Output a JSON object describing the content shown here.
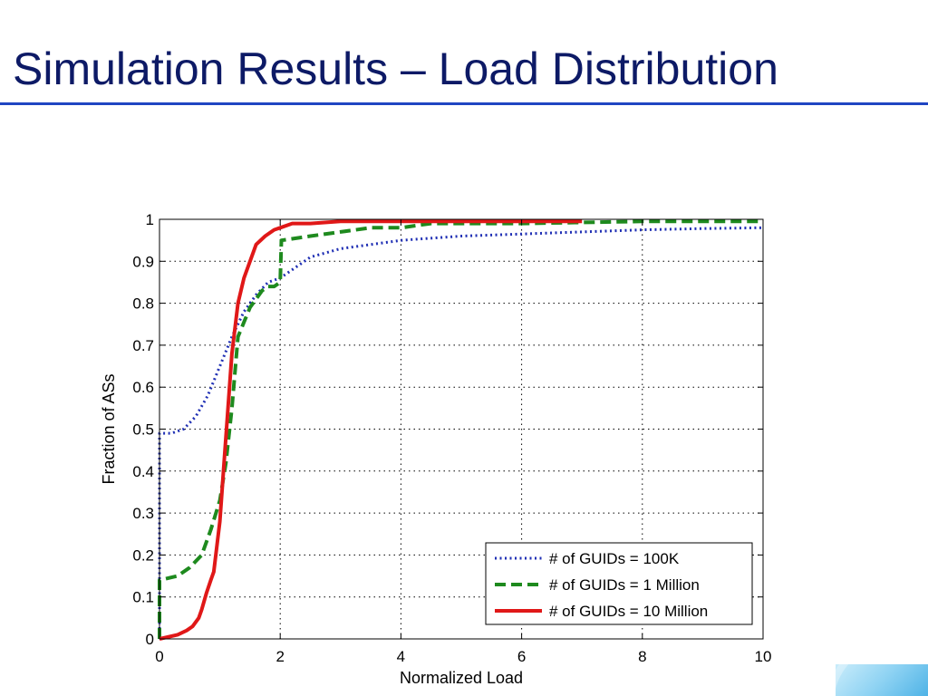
{
  "slide": {
    "title": "Simulation Results – Load Distribution"
  },
  "chart_data": {
    "type": "line",
    "xlabel": "Normalized Load",
    "ylabel": "Fraction of ASs",
    "xlim": [
      0,
      10
    ],
    "ylim": [
      0,
      1
    ],
    "xticks": [
      0,
      2,
      4,
      6,
      8,
      10
    ],
    "xtick_labels": [
      "0",
      "2",
      "4",
      "6",
      "8",
      "10"
    ],
    "yticks": [
      0,
      0.1,
      0.2,
      0.3,
      0.4,
      0.5,
      0.6,
      0.7,
      0.8,
      0.9,
      1
    ],
    "ytick_labels": [
      "0",
      "0.1",
      "0.2",
      "0.3",
      "0.4",
      "0.5",
      "0.6",
      "0.7",
      "0.8",
      "0.9",
      "1"
    ],
    "grid": true,
    "legend_position": "bottom-right",
    "series": [
      {
        "name": "# of GUIDs = 100K",
        "color": "#1f2fb4",
        "style": "dotted",
        "x": [
          0,
          0,
          0.2,
          0.4,
          0.6,
          0.8,
          1.0,
          1.2,
          1.4,
          1.6,
          1.8,
          2.0,
          2.2,
          2.5,
          3.0,
          3.5,
          4.0,
          5.0,
          6.0,
          7.0,
          8.0,
          9.0,
          10.0
        ],
        "y": [
          0,
          0.49,
          0.49,
          0.5,
          0.53,
          0.58,
          0.65,
          0.72,
          0.78,
          0.82,
          0.85,
          0.86,
          0.88,
          0.91,
          0.93,
          0.94,
          0.95,
          0.96,
          0.965,
          0.97,
          0.975,
          0.978,
          0.98
        ]
      },
      {
        "name": "# of GUIDs = 1 Million",
        "color": "#1e8a1e",
        "style": "dashed",
        "x": [
          0,
          0,
          0.3,
          0.5,
          0.7,
          0.85,
          1.0,
          1.1,
          1.2,
          1.3,
          1.5,
          1.7,
          1.8,
          1.9,
          2.0,
          2.02,
          2.5,
          3.0,
          3.5,
          4.0,
          4.5,
          6.0,
          8.0,
          10.0
        ],
        "y": [
          0,
          0.14,
          0.15,
          0.17,
          0.2,
          0.26,
          0.33,
          0.42,
          0.55,
          0.72,
          0.79,
          0.83,
          0.84,
          0.84,
          0.85,
          0.95,
          0.96,
          0.97,
          0.98,
          0.98,
          0.99,
          0.99,
          0.995,
          0.995
        ]
      },
      {
        "name": "# of GUIDs = 10 Million",
        "color": "#e01818",
        "style": "solid",
        "x": [
          0,
          0.3,
          0.45,
          0.55,
          0.65,
          0.7,
          0.78,
          0.85,
          0.9,
          1.0,
          1.05,
          1.12,
          1.2,
          1.3,
          1.4,
          1.5,
          1.6,
          1.75,
          1.9,
          2.0,
          2.2,
          2.5,
          3.0,
          5.0,
          7.0
        ],
        "y": [
          0,
          0.01,
          0.02,
          0.03,
          0.05,
          0.07,
          0.11,
          0.14,
          0.16,
          0.28,
          0.38,
          0.52,
          0.68,
          0.8,
          0.86,
          0.9,
          0.94,
          0.96,
          0.975,
          0.98,
          0.99,
          0.99,
          0.995,
          0.995,
          0.995
        ]
      }
    ]
  }
}
